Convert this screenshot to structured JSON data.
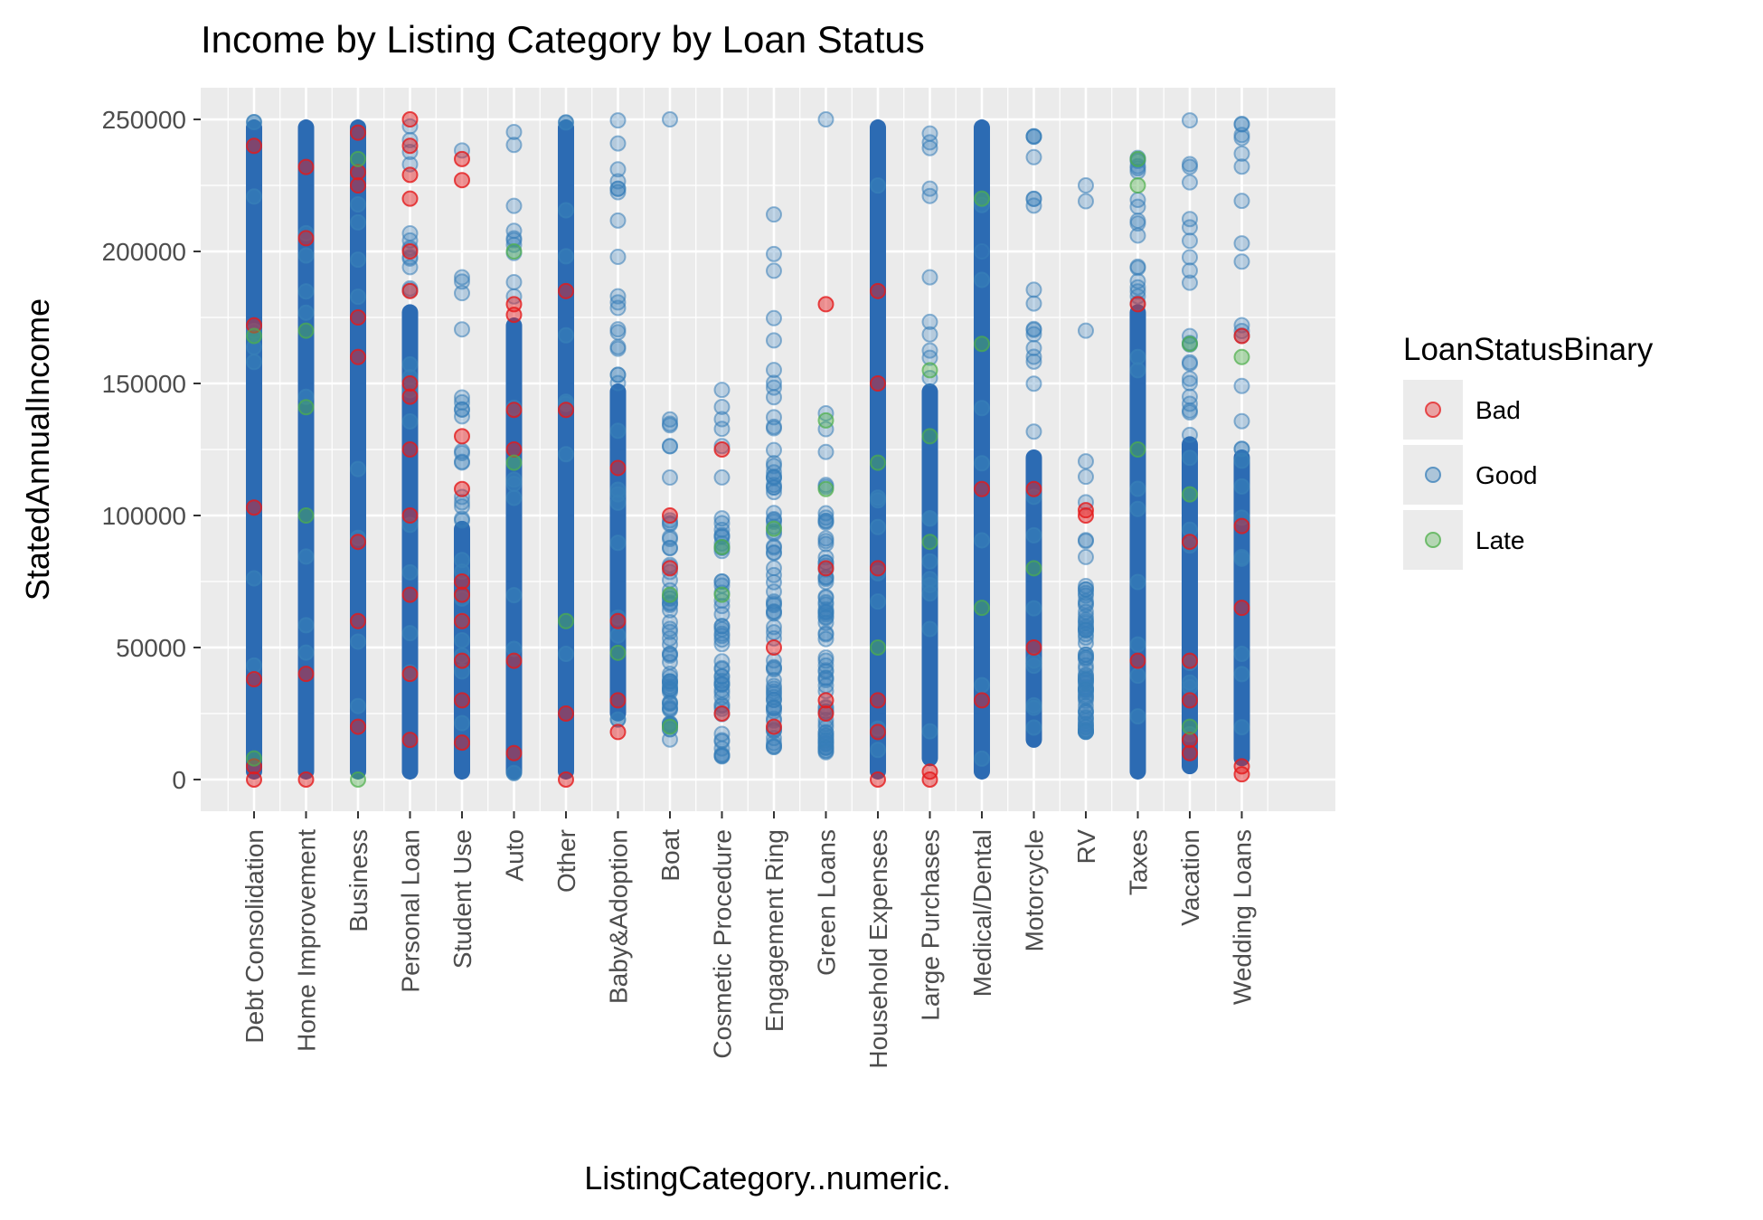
{
  "chart_data": {
    "type": "scatter",
    "title": "Income by Listing Category by Loan Status",
    "xlabel": "ListingCategory..numeric.",
    "ylabel": "StatedAnnualIncome",
    "ylim": [
      -12000,
      262000
    ],
    "y_ticks": [
      {
        "value": 0,
        "label": "0"
      },
      {
        "value": 50000,
        "label": "50000"
      },
      {
        "value": 100000,
        "label": "100000"
      },
      {
        "value": 150000,
        "label": "150000"
      },
      {
        "value": 200000,
        "label": "200000"
      },
      {
        "value": 250000,
        "label": "250000"
      }
    ],
    "categories": [
      {
        "label": "Debt Consolidation",
        "dense": true,
        "blue": [
          0,
          250000
        ],
        "red": [
          0,
          5000,
          38000,
          103000,
          172000,
          240000
        ],
        "green": [
          8000,
          168000
        ]
      },
      {
        "label": "Home Improvement",
        "dense": true,
        "blue": [
          0,
          250000
        ],
        "red": [
          0,
          40000,
          205000,
          232000
        ],
        "green": [
          100000,
          141000,
          170000
        ]
      },
      {
        "label": "Business",
        "dense": true,
        "blue": [
          0,
          250000
        ],
        "red": [
          20000,
          60000,
          90000,
          160000,
          175000,
          225000,
          230000,
          245000
        ],
        "green": [
          0,
          235000
        ]
      },
      {
        "label": "Personal Loan",
        "dense": true,
        "blue": [
          0,
          180000
        ],
        "red": [
          15000,
          40000,
          70000,
          100000,
          125000,
          145000,
          150000,
          185000,
          200000,
          220000,
          229000,
          240000,
          250000
        ],
        "green": []
      },
      {
        "label": "Student Use",
        "dense": true,
        "blue": [
          0,
          98000
        ],
        "red": [
          14000,
          30000,
          45000,
          60000,
          70000,
          75000,
          110000,
          130000,
          227000,
          235000
        ],
        "green": []
      },
      {
        "label": "Auto",
        "dense": true,
        "blue": [
          0,
          175000
        ],
        "red": [
          10000,
          45000,
          125000,
          140000,
          176000,
          180000
        ],
        "green": [
          200000,
          120000
        ]
      },
      {
        "label": "Other",
        "dense": true,
        "blue": [
          0,
          250000
        ],
        "red": [
          0,
          25000,
          140000,
          185000
        ],
        "green": [
          60000
        ]
      },
      {
        "label": "Baby&Adoption",
        "dense": true,
        "blue": [
          22000,
          150000
        ],
        "red": [
          18000,
          30000,
          60000,
          118000
        ],
        "green": [
          48000
        ]
      },
      {
        "label": "Boat",
        "dense": false,
        "blue": [
          15000,
          100000
        ],
        "red": [
          80000,
          100000
        ],
        "green": [
          20000,
          70000
        ]
      },
      {
        "label": "Cosmetic Procedure",
        "dense": false,
        "blue": [
          8000,
          100000
        ],
        "red": [
          25000,
          125000
        ],
        "green": [
          70000,
          88000
        ]
      },
      {
        "label": "Engagement Ring",
        "dense": false,
        "blue": [
          10000,
          150000
        ],
        "red": [
          20000,
          50000
        ],
        "green": [
          95000
        ]
      },
      {
        "label": "Green Loans",
        "dense": false,
        "blue": [
          10000,
          100000
        ],
        "red": [
          25000,
          30000,
          80000,
          180000
        ],
        "green": [
          110000,
          136000
        ]
      },
      {
        "label": "Household Expenses",
        "dense": true,
        "blue": [
          0,
          250000
        ],
        "red": [
          0,
          18000,
          30000,
          80000,
          150000,
          185000
        ],
        "green": [
          50000,
          120000
        ]
      },
      {
        "label": "Large Purchases",
        "dense": true,
        "blue": [
          5000,
          150000
        ],
        "red": [
          0,
          3000
        ],
        "green": [
          90000,
          130000,
          155000
        ]
      },
      {
        "label": "Medical/Dental",
        "dense": true,
        "blue": [
          0,
          250000
        ],
        "red": [
          30000,
          110000
        ],
        "green": [
          65000,
          165000,
          220000
        ]
      },
      {
        "label": "Motorcycle",
        "dense": true,
        "blue": [
          12000,
          125000
        ],
        "red": [
          50000,
          110000
        ],
        "green": [
          80000
        ]
      },
      {
        "label": "RV",
        "dense": false,
        "blue": [
          18000,
          75000
        ],
        "red": [
          100000,
          102000
        ],
        "green": []
      },
      {
        "label": "Taxes",
        "dense": true,
        "blue": [
          0,
          180000
        ],
        "red": [
          45000,
          180000
        ],
        "green": [
          125000,
          225000,
          235000
        ]
      },
      {
        "label": "Vacation",
        "dense": true,
        "blue": [
          2000,
          130000
        ],
        "red": [
          10000,
          15000,
          30000,
          45000,
          90000
        ],
        "green": [
          20000,
          108000,
          165000
        ]
      },
      {
        "label": "Wedding Loans",
        "dense": true,
        "blue": [
          5000,
          125000
        ],
        "red": [
          2000,
          5000,
          65000,
          96000,
          168000
        ],
        "green": [
          160000
        ]
      }
    ],
    "legend": {
      "title": "LoanStatusBinary",
      "placement": "right",
      "entries": [
        {
          "label": "Bad",
          "color": "#e41a1c"
        },
        {
          "label": "Good",
          "color": "#377eb8"
        },
        {
          "label": "Late",
          "color": "#4daf4a"
        }
      ]
    },
    "dense_color": "#2c6bb3",
    "grid": true,
    "panel_background": "#ebebeb"
  }
}
